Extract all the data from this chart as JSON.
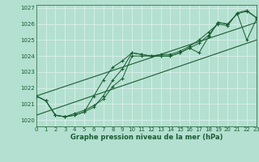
{
  "title": "Graphe pression niveau de la mer (hPa)",
  "bg_color": "#b3e0d0",
  "grid_color": "#d4ede6",
  "line_color": "#1a5c32",
  "xlim": [
    0,
    23
  ],
  "ylim": [
    1019.6,
    1027.2
  ],
  "xticks": [
    0,
    1,
    2,
    3,
    4,
    5,
    6,
    7,
    8,
    9,
    10,
    11,
    12,
    13,
    14,
    15,
    16,
    17,
    18,
    19,
    20,
    21,
    22,
    23
  ],
  "yticks": [
    1020,
    1021,
    1022,
    1023,
    1024,
    1025,
    1026,
    1027
  ],
  "series_data": [
    {
      "x": [
        0,
        1,
        2,
        3,
        4,
        5,
        6,
        7,
        8,
        9,
        10,
        11,
        12,
        13,
        14,
        15,
        16,
        17,
        18,
        19,
        20,
        21,
        22,
        23
      ],
      "y": [
        1021.5,
        1021.2,
        1020.3,
        1020.2,
        1020.3,
        1020.5,
        1020.8,
        1021.5,
        1022.5,
        1023.2,
        1024.2,
        1024.1,
        1024.0,
        1024.0,
        1024.0,
        1024.2,
        1024.5,
        1024.2,
        1025.2,
        1026.1,
        1026.0,
        1026.65,
        1025.0,
        1026.3
      ],
      "marker": true
    },
    {
      "x": [
        0,
        1,
        2,
        3,
        4,
        5,
        6,
        7,
        8,
        9,
        10,
        11,
        12,
        13,
        14,
        15,
        16,
        17,
        18,
        19,
        20,
        21,
        22,
        23
      ],
      "y": [
        1021.5,
        1021.2,
        1020.3,
        1020.2,
        1020.3,
        1020.5,
        1021.5,
        1022.5,
        1023.3,
        1023.7,
        1024.2,
        1024.1,
        1024.0,
        1024.0,
        1024.0,
        1024.2,
        1024.5,
        1024.8,
        1025.3,
        1026.1,
        1026.0,
        1026.65,
        1026.8,
        1026.4
      ],
      "marker": true
    },
    {
      "x": [
        0,
        1,
        2,
        3,
        4,
        5,
        6,
        7,
        8,
        9,
        10,
        11,
        12,
        13,
        14,
        15,
        16,
        17,
        18,
        19,
        20,
        21,
        22,
        23
      ],
      "y": [
        1021.5,
        1021.2,
        1020.3,
        1020.2,
        1020.4,
        1020.6,
        1020.9,
        1021.3,
        1022.1,
        1022.6,
        1024.0,
        1024.0,
        1024.0,
        1024.1,
        1024.1,
        1024.3,
        1024.6,
        1025.0,
        1025.5,
        1026.0,
        1025.9,
        1026.7,
        1026.85,
        1026.4
      ],
      "marker": true
    },
    {
      "x": [
        0,
        23
      ],
      "y": [
        1021.5,
        1026.1
      ],
      "marker": false
    },
    {
      "x": [
        0,
        23
      ],
      "y": [
        1020.3,
        1025.0
      ],
      "marker": false
    }
  ]
}
